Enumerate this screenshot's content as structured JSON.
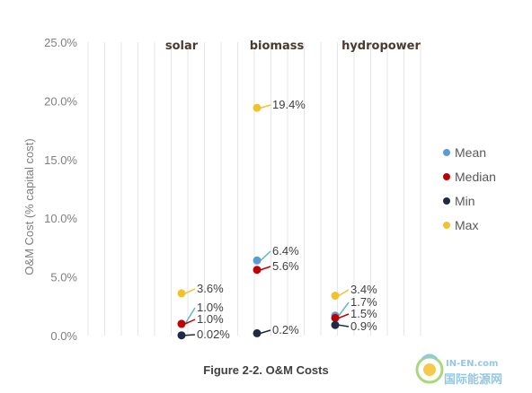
{
  "chart_data": {
    "type": "scatter",
    "title": "",
    "xlabel": "",
    "ylabel": "O&M Cost (% capital cost)",
    "ylim": [
      0,
      25
    ],
    "yticks": [
      "0.0%",
      "5.0%",
      "10.0%",
      "15.0%",
      "20.0%",
      "25.0%"
    ],
    "categories": [
      "solar",
      "biomass",
      "hydropower"
    ],
    "legend_position": "right",
    "grid": true,
    "series": [
      {
        "name": "Mean",
        "color": "#5b9bd5",
        "values": [
          1.0,
          6.4,
          1.7
        ],
        "labels": [
          "1.0%",
          "6.4%",
          "1.7%"
        ]
      },
      {
        "name": "Median",
        "color": "#c00000",
        "values": [
          1.0,
          5.6,
          1.5
        ],
        "labels": [
          "1.0%",
          "5.6%",
          "1.5%"
        ]
      },
      {
        "name": "Min",
        "color": "#1f2a44",
        "values": [
          0.02,
          0.2,
          0.9
        ],
        "labels": [
          "0.02%",
          "0.2%",
          "0.9%"
        ]
      },
      {
        "name": "Max",
        "color": "#f2c12e",
        "values": [
          3.6,
          19.4,
          3.4
        ],
        "labels": [
          "3.6%",
          "19.4%",
          "3.4%"
        ]
      }
    ]
  },
  "caption": "Figure 2-2. O&M Costs",
  "watermark": {
    "line1": "IN-EN.com",
    "line2": "国际能源网"
  }
}
